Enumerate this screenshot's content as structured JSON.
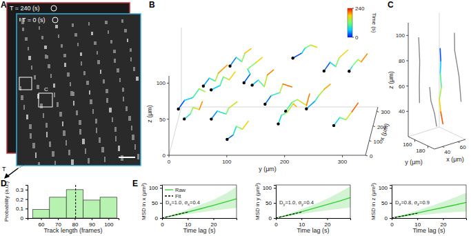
{
  "chart_data": [
    {
      "type": "image",
      "panel_label": "A",
      "labels": [
        "T = 240 (s)",
        "T = 0 (s)",
        "C",
        "T"
      ]
    },
    {
      "type": "scatter3d",
      "panel_label": "B",
      "xlabel": "x (μm)",
      "ylabel": "y (μm)",
      "zlabel": "z (μm)",
      "xlim": [
        0,
        330
      ],
      "ylim": [
        0,
        340
      ],
      "zlim": [
        0,
        110
      ],
      "xticks": [
        0,
        100,
        200,
        300
      ],
      "yticks": [
        0,
        100,
        200,
        300
      ],
      "zticks": [
        0,
        50,
        100
      ],
      "colorbar": {
        "label": "Time (s)",
        "range": [
          0,
          240
        ],
        "ticks": [
          0,
          240
        ]
      },
      "tracks": [
        {
          "x": [
            20,
            30,
            25,
            35,
            40
          ],
          "y": [
            15,
            25,
            40,
            50,
            60
          ],
          "z": [
            60,
            70,
            75,
            85,
            80
          ],
          "t": [
            0,
            40,
            80,
            120,
            160
          ]
        },
        {
          "x": [
            50,
            55,
            60,
            50,
            45
          ],
          "y": [
            70,
            80,
            95,
            100,
            115
          ],
          "z": [
            40,
            50,
            45,
            55,
            65
          ],
          "t": [
            20,
            60,
            100,
            140,
            180
          ]
        },
        {
          "x": [
            100,
            110,
            105,
            115,
            120
          ],
          "y": [
            20,
            30,
            35,
            45,
            50
          ],
          "z": [
            30,
            35,
            45,
            40,
            50
          ],
          "t": [
            60,
            100,
            140,
            180,
            220
          ]
        },
        {
          "x": [
            150,
            160,
            170,
            165,
            175
          ],
          "y": [
            120,
            130,
            125,
            140,
            150
          ],
          "z": [
            70,
            80,
            85,
            95,
            100
          ],
          "t": [
            0,
            50,
            100,
            150,
            200
          ]
        },
        {
          "x": [
            200,
            205,
            215,
            220,
            225
          ],
          "y": [
            60,
            75,
            80,
            90,
            100
          ],
          "z": [
            50,
            55,
            65,
            60,
            70
          ],
          "t": [
            40,
            80,
            120,
            160,
            200
          ]
        },
        {
          "x": [
            250,
            260,
            255,
            265,
            270
          ],
          "y": [
            150,
            160,
            175,
            180,
            195
          ],
          "z": [
            20,
            30,
            35,
            45,
            40
          ],
          "t": [
            0,
            60,
            120,
            180,
            240
          ]
        },
        {
          "x": [
            30,
            40,
            35,
            45,
            50
          ],
          "y": [
            200,
            210,
            220,
            235,
            240
          ],
          "z": [
            55,
            65,
            70,
            60,
            75
          ],
          "t": [
            80,
            110,
            140,
            180,
            230
          ]
        },
        {
          "x": [
            120,
            125,
            135,
            130,
            140
          ],
          "y": [
            230,
            245,
            250,
            260,
            270
          ],
          "z": [
            40,
            50,
            55,
            65,
            70
          ],
          "t": [
            20,
            70,
            120,
            170,
            220
          ]
        },
        {
          "x": [
            280,
            290,
            285,
            295,
            300
          ],
          "y": [
            250,
            260,
            270,
            275,
            290
          ],
          "z": [
            60,
            70,
            65,
            75,
            85
          ],
          "t": [
            0,
            50,
            100,
            150,
            200
          ]
        },
        {
          "x": [
            80,
            85,
            95,
            100,
            110
          ],
          "y": [
            280,
            290,
            300,
            310,
            320
          ],
          "z": [
            25,
            35,
            30,
            40,
            50
          ],
          "t": [
            40,
            90,
            140,
            190,
            240
          ]
        },
        {
          "x": [
            180,
            190,
            185,
            195,
            200
          ],
          "y": [
            300,
            305,
            315,
            320,
            330
          ],
          "z": [
            80,
            85,
            95,
            90,
            100
          ],
          "t": [
            60,
            100,
            140,
            180,
            220
          ]
        },
        {
          "x": [
            220,
            230,
            240,
            235,
            245
          ],
          "y": [
            200,
            215,
            220,
            230,
            240
          ],
          "z": [
            90,
            95,
            100,
            105,
            100
          ],
          "t": [
            0,
            40,
            90,
            140,
            190
          ]
        },
        {
          "x": [
            60,
            70,
            75,
            80,
            90
          ],
          "y": [
            140,
            150,
            160,
            165,
            175
          ],
          "z": [
            85,
            90,
            80,
            95,
            100
          ],
          "t": [
            30,
            80,
            130,
            180,
            230
          ]
        },
        {
          "x": [
            10,
            15,
            25,
            30,
            35
          ],
          "y": [
            100,
            110,
            115,
            125,
            135
          ],
          "z": [
            20,
            25,
            35,
            30,
            40
          ],
          "t": [
            0,
            50,
            100,
            150,
            200
          ]
        },
        {
          "x": [
            300,
            305,
            310,
            315,
            320
          ],
          "y": [
            40,
            50,
            60,
            65,
            80
          ],
          "z": [
            35,
            45,
            40,
            50,
            60
          ],
          "t": [
            20,
            70,
            120,
            170,
            220
          ]
        },
        {
          "x": [
            140,
            150,
            145,
            155,
            160
          ],
          "y": [
            180,
            185,
            195,
            205,
            210
          ],
          "z": [
            15,
            25,
            30,
            40,
            35
          ],
          "t": [
            50,
            90,
            130,
            170,
            210
          ]
        },
        {
          "x": [
            240,
            250,
            245,
            255,
            260
          ],
          "y": [
            90,
            100,
            110,
            115,
            125
          ],
          "z": [
            75,
            85,
            80,
            90,
            95
          ],
          "t": [
            10,
            60,
            110,
            160,
            210
          ]
        }
      ]
    },
    {
      "type": "scatter3d",
      "panel_label": "C",
      "xlabel": "x (μm)",
      "ylabel": "y (μm)",
      "zlabel": "z (μm)",
      "xlim": [
        30,
        70
      ],
      "ylim": [
        150,
        190
      ],
      "zlim": [
        20,
        110
      ],
      "xticks": [
        40,
        60
      ],
      "yticks": [
        160,
        180
      ],
      "zticks": [
        40,
        60,
        80,
        100
      ],
      "track": {
        "x": [
          50,
          50,
          51,
          50,
          49,
          50,
          51
        ],
        "y": [
          175,
          176,
          174,
          177,
          175,
          176,
          178
        ],
        "z": [
          92,
          82,
          72,
          62,
          52,
          42,
          33
        ],
        "t": [
          0,
          40,
          80,
          120,
          160,
          200,
          240
        ]
      },
      "neighbors": [
        {
          "x": [
            35,
            38,
            40,
            42
          ],
          "y": [
            160,
            158,
            155,
            153
          ],
          "z": [
            100,
            80,
            60,
            45
          ]
        },
        {
          "x": [
            60,
            62,
            65,
            66
          ],
          "y": [
            185,
            183,
            186,
            188
          ],
          "z": [
            105,
            90,
            70,
            50
          ]
        },
        {
          "x": [
            45,
            44,
            47,
            48
          ],
          "y": [
            165,
            168,
            170,
            172
          ],
          "z": [
            60,
            50,
            40,
            30
          ]
        }
      ]
    },
    {
      "type": "histogram",
      "panel_label": "D",
      "xlabel": "Track length (frames)",
      "ylabel": "Probability (a.u.)",
      "bins": [
        55,
        65,
        75,
        85,
        95,
        105
      ],
      "counts": [
        0.09,
        0.22,
        0.3,
        0.19,
        0.22
      ],
      "color": "#b8f2b0",
      "reference_line": 80.5,
      "xlim": [
        52,
        106
      ],
      "xticks": [
        60,
        70,
        80,
        90,
        100
      ],
      "ylim": [
        0,
        0.35
      ],
      "yticks": [
        0,
        0.1,
        0.2,
        0.3
      ]
    },
    {
      "type": "line",
      "panel_label": "E",
      "xlabel": "Time lag (s)",
      "ylabel": "MSD in x (μm²)",
      "legend": "upper left",
      "xlim": [
        0,
        29
      ],
      "xticks": [
        0,
        10,
        20
      ],
      "ylim": [
        0,
        110
      ],
      "yticks": [
        0,
        50,
        100
      ],
      "annotation": [
        {
          "text": "D"
        },
        {
          "sub": "x"
        },
        {
          "text": "=1.0, σ"
        },
        {
          "sub": "x"
        },
        {
          "text": "=0.4"
        }
      ],
      "series": [
        {
          "name": "Raw",
          "color": "#33cc33",
          "x": [
            1,
            5,
            10,
            15,
            20,
            25,
            29
          ],
          "values": [
            2,
            10,
            20,
            31,
            42,
            54,
            64
          ],
          "lower": [
            1.5,
            6,
            13,
            19,
            25,
            30,
            34
          ],
          "upper": [
            2.5,
            14,
            28,
            44,
            61,
            82,
            104
          ]
        },
        {
          "name": "Fit",
          "color": "#000000",
          "line_style": "dashed",
          "x": [
            0,
            10
          ],
          "values": [
            0,
            20
          ]
        }
      ]
    },
    {
      "type": "line",
      "xlabel": "Time lag (s)",
      "ylabel": "MSD in y (μm²)",
      "xlim": [
        0,
        29
      ],
      "xticks": [
        0,
        10,
        20
      ],
      "ylim": [
        0,
        110
      ],
      "yticks": [
        0,
        50,
        100
      ],
      "annotation": [
        {
          "text": "D"
        },
        {
          "sub": "y"
        },
        {
          "text": "=1.0, σ"
        },
        {
          "sub": "y"
        },
        {
          "text": "=0.4"
        }
      ],
      "series": [
        {
          "color": "#33cc33",
          "x": [
            1,
            5,
            10,
            15,
            20,
            25,
            29
          ],
          "values": [
            2,
            10,
            21,
            33,
            45,
            57,
            68
          ],
          "lower": [
            1.5,
            6,
            13,
            20,
            26,
            31,
            35
          ],
          "upper": [
            2.5,
            14,
            29,
            46,
            64,
            86,
            106
          ]
        },
        {
          "color": "#000000",
          "line_style": "dashed",
          "x": [
            0,
            10
          ],
          "values": [
            0,
            20
          ]
        }
      ]
    },
    {
      "type": "line",
      "xlabel": "Time lag (s)",
      "ylabel": "MSD in z (μm²)",
      "xlim": [
        0,
        29
      ],
      "xticks": [
        0,
        10,
        20
      ],
      "ylim": [
        0,
        110
      ],
      "yticks": [
        0,
        50,
        100
      ],
      "annotation": [
        {
          "text": "D"
        },
        {
          "sub": "z"
        },
        {
          "text": "=0.8, σ"
        },
        {
          "sub": "z"
        },
        {
          "text": "=0.9"
        }
      ],
      "series": [
        {
          "color": "#33cc33",
          "x": [
            1,
            5,
            10,
            15,
            20,
            25,
            29
          ],
          "values": [
            2,
            8,
            17,
            26,
            35,
            44,
            52
          ],
          "lower": [
            1,
            4,
            9,
            13,
            17,
            20,
            22
          ],
          "upper": [
            3,
            12,
            25,
            39,
            54,
            70,
            84
          ]
        },
        {
          "color": "#000000",
          "line_style": "dashed",
          "x": [
            0,
            10
          ],
          "values": [
            0,
            16
          ]
        }
      ]
    }
  ]
}
